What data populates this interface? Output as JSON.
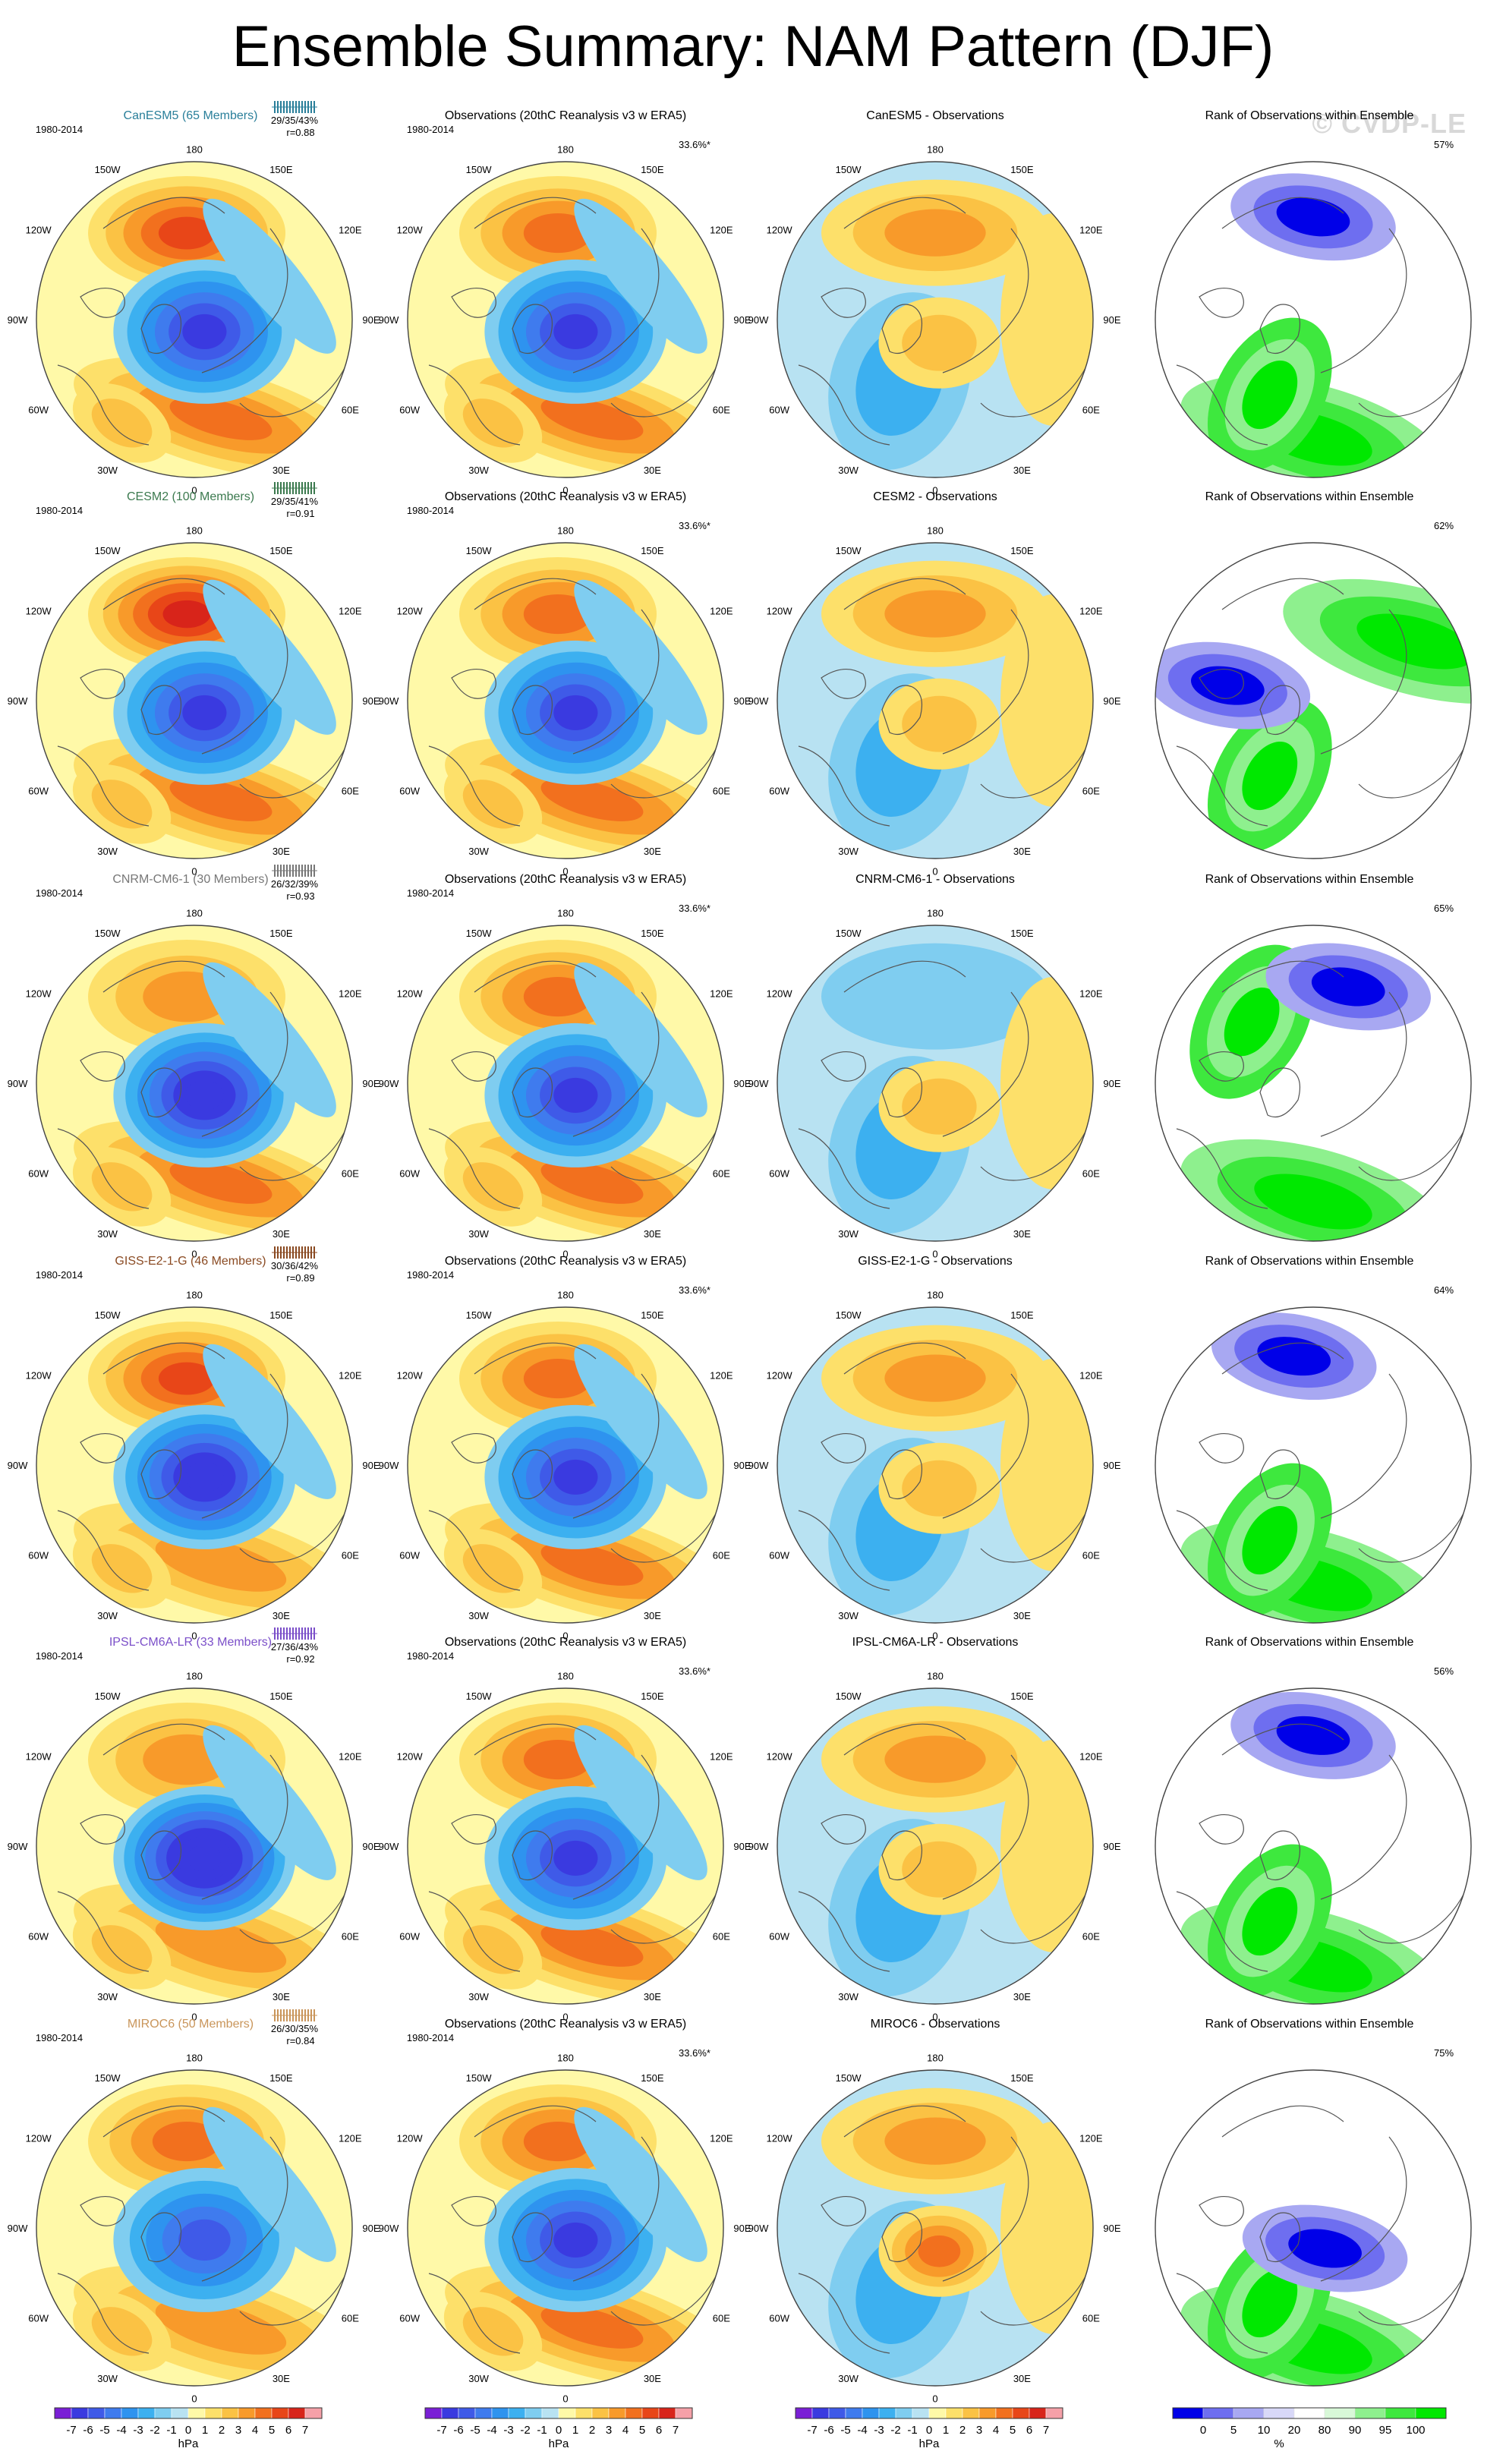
{
  "title": "Ensemble Summary: NAM Pattern (DJF)",
  "watermark": "© CVDP-LE",
  "period": "1980-2014",
  "lon_labels": {
    "top": "180",
    "top_left": "150W",
    "top_right": "150E",
    "upper_left": "120W",
    "upper_right": "120E",
    "left": "90W",
    "right": "90E",
    "lower_left": "60W",
    "lower_right": "60E",
    "bottom_left": "30W",
    "bottom_right": "30E",
    "bottom": "0"
  },
  "colors": {
    "title_CanESM5": "#2a7f9a",
    "title_CESM2": "#3c7a4f",
    "title_CNRM": "#777777",
    "title_GISS": "#8a4a22",
    "title_IPSL": "#7b4fc9",
    "title_MIROC6": "#c9955a"
  },
  "rows": [
    {
      "model_title": "CanESM5 (65 Members)",
      "model_color": "#2a7f9a",
      "stats": "29/35/43%",
      "r": "r=0.88",
      "obs_title": "Observations (20thC Reanalysis v3 w ERA5)",
      "obs_pct": "33.6%*",
      "diff_title": "CanESM5 - Observations",
      "rank_title": "Rank of Observations within Ensemble",
      "rank_pct": "57%",
      "pattern": {
        "pac": 1.25,
        "atl": 0.95,
        "cen": 1.05,
        "eur": 0.75,
        "diff": [
          0.6,
          -0.5,
          0.3
        ],
        "rank": "a"
      }
    },
    {
      "model_title": "CESM2 (100 Members)",
      "model_color": "#3c7a4f",
      "stats": "29/35/41%",
      "r": "r=0.91",
      "obs_title": "Observations (20thC Reanalysis v3 w ERA5)",
      "obs_pct": "33.6%*",
      "diff_title": "CESM2 - Observations",
      "rank_title": "Rank of Observations within Ensemble",
      "rank_pct": "62%",
      "pattern": {
        "pac": 1.45,
        "atl": 1.0,
        "cen": 1.0,
        "eur": 0.7,
        "diff": [
          0.7,
          -0.6,
          0.2
        ],
        "rank": "b"
      }
    },
    {
      "model_title": "CNRM-CM6-1 (30 Members)",
      "model_color": "#777777",
      "stats": "26/32/39%",
      "r": "r=0.93",
      "obs_title": "Observations (20thC Reanalysis v3 w ERA5)",
      "obs_pct": "33.6%*",
      "diff_title": "CNRM-CM6-1 - Observations",
      "rank_title": "Rank of Observations within Ensemble",
      "rank_pct": "65%",
      "pattern": {
        "pac": 0.7,
        "atl": 0.9,
        "cen": 1.1,
        "eur": 0.8,
        "diff": [
          -0.2,
          -0.3,
          0.5
        ],
        "rank": "c"
      }
    },
    {
      "model_title": "GISS-E2-1-G (46 Members)",
      "model_color": "#8a4a22",
      "stats": "30/36/42%",
      "r": "r=0.89",
      "obs_title": "Observations (20thC Reanalysis v3 w ERA5)",
      "obs_pct": "33.6%*",
      "diff_title": "GISS-E2-1-G - Observations",
      "rank_title": "Rank of Observations within Ensemble",
      "rank_pct": "64%",
      "pattern": {
        "pac": 1.35,
        "atl": 0.85,
        "cen": 1.15,
        "eur": 0.65,
        "diff": [
          0.7,
          -0.4,
          0.3
        ],
        "rank": "d"
      }
    },
    {
      "model_title": "IPSL-CM6A-LR (33 Members)",
      "model_color": "#7b4fc9",
      "stats": "27/36/43%",
      "r": "r=0.92",
      "obs_title": "Observations (20thC Reanalysis v3 w ERA5)",
      "obs_pct": "33.6%*",
      "diff_title": "IPSL-CM6A-LR - Observations",
      "rank_title": "Rank of Observations within Ensemble",
      "rank_pct": "56%",
      "pattern": {
        "pac": 0.85,
        "atl": 0.8,
        "cen": 1.25,
        "eur": 0.6,
        "diff": [
          0.4,
          -0.5,
          0.2
        ],
        "rank": "e"
      }
    },
    {
      "model_title": "MIROC6 (50 Members)",
      "model_color": "#c9955a",
      "stats": "26/30/35%",
      "r": "r=0.84",
      "obs_title": "Observations (20thC Reanalysis v3 w ERA5)",
      "obs_pct": "33.6%*",
      "diff_title": "MIROC6 - Observations",
      "rank_title": "Rank of Observations within Ensemble",
      "rank_pct": "75%",
      "pattern": {
        "pac": 0.95,
        "atl": 0.75,
        "cen": 0.75,
        "eur": 0.55,
        "diff": [
          0.3,
          -0.6,
          0.9
        ],
        "rank": "f"
      }
    }
  ],
  "legends": {
    "hpa_ticks": [
      "-7",
      "-6",
      "-5",
      "-4",
      "-3",
      "-2",
      "-1",
      "0",
      "1",
      "2",
      "3",
      "4",
      "5",
      "6",
      "7"
    ],
    "hpa_unit": "hPa",
    "hpa_colors": [
      "#7a1fd6",
      "#3a3ae0",
      "#3f5ae8",
      "#3f7bee",
      "#2e93ef",
      "#3cb0f0",
      "#7fcdf0",
      "#b8e2f2",
      "#fff9a8",
      "#fde06a",
      "#fbc244",
      "#f89a2a",
      "#f2701e",
      "#e84618",
      "#d8241a",
      "#f5a0a8"
    ],
    "pct_ticks": [
      "0",
      "5",
      "10",
      "20",
      "80",
      "90",
      "95",
      "100"
    ],
    "pct_unit": "%",
    "pct_colors": [
      "#0000e8",
      "#6e6ef0",
      "#a8a8f2",
      "#d8d8f8",
      "#ffffff",
      "#d8f8d8",
      "#8ef08e",
      "#3ee83e",
      "#00e800"
    ]
  }
}
